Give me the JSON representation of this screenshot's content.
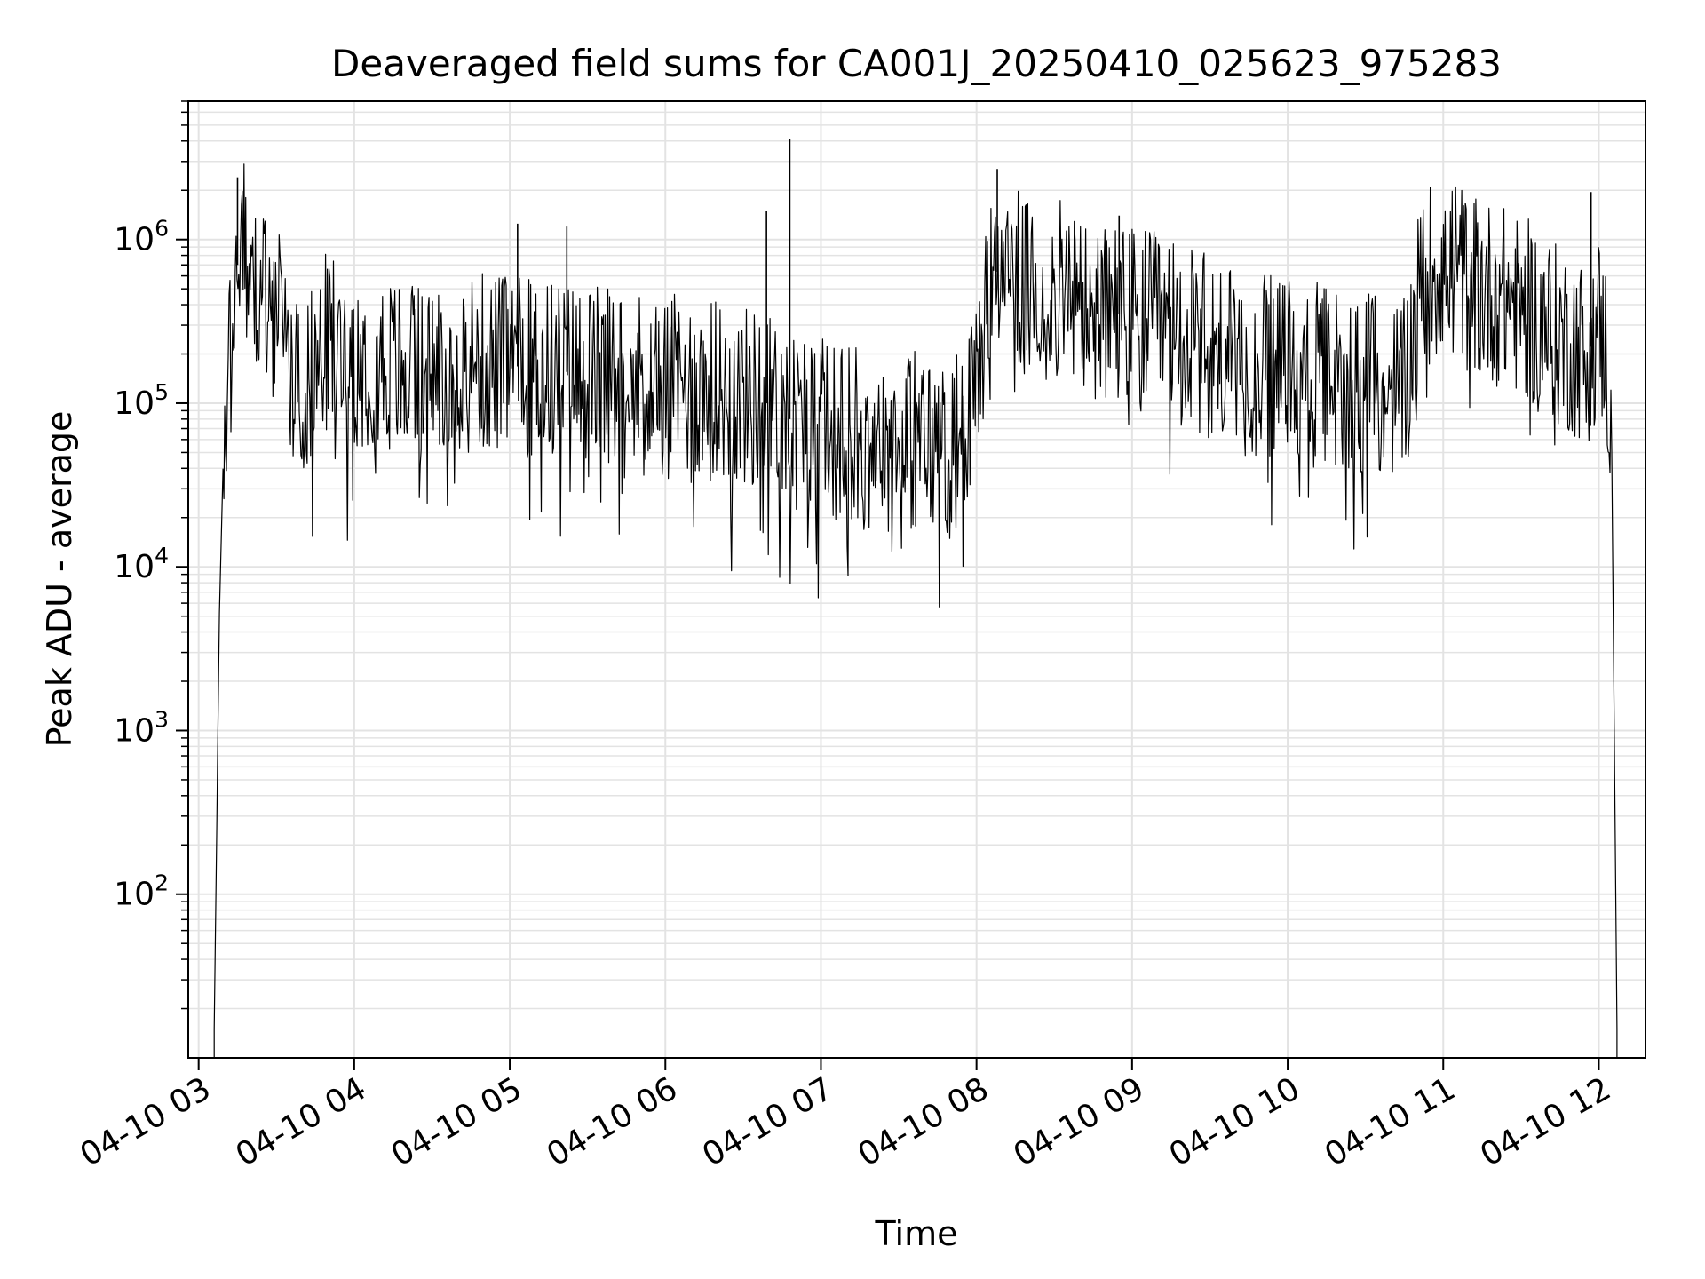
{
  "chart_data": {
    "type": "line",
    "title": "Deaveraged field sums for CA001J_20250410_025623_975283",
    "xlabel": "Time",
    "ylabel": "Peak ADU - average",
    "yscale": "log",
    "ylim": [
      10,
      7000000
    ],
    "xlim": [
      "2025-04-10 02:56",
      "2025-04-10 12:18"
    ],
    "grid": true,
    "grid_color": "#e3e3e3",
    "line_color": "#000000",
    "x_ticks": [
      {
        "value": "2025-04-10 03:00",
        "label": "04-10 03"
      },
      {
        "value": "2025-04-10 04:00",
        "label": "04-10 04"
      },
      {
        "value": "2025-04-10 05:00",
        "label": "04-10 05"
      },
      {
        "value": "2025-04-10 06:00",
        "label": "04-10 06"
      },
      {
        "value": "2025-04-10 07:00",
        "label": "04-10 07"
      },
      {
        "value": "2025-04-10 08:00",
        "label": "04-10 08"
      },
      {
        "value": "2025-04-10 09:00",
        "label": "04-10 09"
      },
      {
        "value": "2025-04-10 10:00",
        "label": "04-10 10"
      },
      {
        "value": "2025-04-10 11:00",
        "label": "04-10 11"
      },
      {
        "value": "2025-04-10 12:00",
        "label": "04-10 12"
      }
    ],
    "y_ticks": [
      {
        "value": 100,
        "base": "10",
        "exp": "2"
      },
      {
        "value": 1000,
        "base": "10",
        "exp": "3"
      },
      {
        "value": 10000,
        "base": "10",
        "exp": "4"
      },
      {
        "value": 100000,
        "base": "10",
        "exp": "5"
      },
      {
        "value": 1000000,
        "base": "10",
        "exp": "6"
      }
    ],
    "series": [
      {
        "x": [
          "2025-04-10 03:06",
          "2025-04-10 03:08",
          "2025-04-10 03:10",
          "2025-04-10 03:12",
          "2025-04-10 03:14",
          "2025-04-10 03:15",
          "2025-04-10 03:17",
          "2025-04-10 03:20",
          "2025-04-10 03:25",
          "2025-04-10 03:30",
          "2025-04-10 03:35",
          "2025-04-10 03:40",
          "2025-04-10 03:45",
          "2025-04-10 03:50",
          "2025-04-10 03:55",
          "2025-04-10 04:00",
          "2025-04-10 04:10",
          "2025-04-10 04:20",
          "2025-04-10 04:27",
          "2025-04-10 04:35",
          "2025-04-10 04:45",
          "2025-04-10 05:00",
          "2025-04-10 05:15",
          "2025-04-10 05:30",
          "2025-04-10 05:45",
          "2025-04-10 06:00",
          "2025-04-10 06:15",
          "2025-04-10 06:30",
          "2025-04-10 06:39",
          "2025-04-10 06:48",
          "2025-04-10 07:00",
          "2025-04-10 07:15",
          "2025-04-10 07:30",
          "2025-04-10 07:45",
          "2025-04-10 07:55",
          "2025-04-10 08:00",
          "2025-04-10 08:05",
          "2025-04-10 08:10",
          "2025-04-10 08:20",
          "2025-04-10 08:30",
          "2025-04-10 08:45",
          "2025-04-10 09:00",
          "2025-04-10 09:15",
          "2025-04-10 09:30",
          "2025-04-10 09:45",
          "2025-04-10 10:00",
          "2025-04-10 10:15",
          "2025-04-10 10:30",
          "2025-04-10 10:45",
          "2025-04-10 10:52",
          "2025-04-10 11:00",
          "2025-04-10 11:15",
          "2025-04-10 11:30",
          "2025-04-10 11:45",
          "2025-04-10 11:56",
          "2025-04-10 12:00",
          "2025-04-10 12:03",
          "2025-04-10 12:05",
          "2025-04-10 12:07"
        ],
        "y": [
          15,
          5000,
          100000,
          300000,
          500000,
          700000,
          900000,
          700000,
          500000,
          350000,
          200000,
          120000,
          150000,
          250000,
          200000,
          200000,
          180000,
          150000,
          150000,
          170000,
          180000,
          170000,
          160000,
          150000,
          140000,
          130000,
          120000,
          110000,
          100000,
          80000,
          70000,
          60000,
          60000,
          55000,
          60000,
          150000,
          450000,
          800000,
          450000,
          500000,
          350000,
          350000,
          280000,
          220000,
          170000,
          160000,
          150000,
          130000,
          120000,
          600000,
          700000,
          500000,
          400000,
          250000,
          200000,
          300000,
          200000,
          50000,
          15
        ],
        "spikes": [
          {
            "x": "2025-04-10 03:15",
            "y": 2400000
          },
          {
            "x": "2025-04-10 05:03",
            "y": 1250000
          },
          {
            "x": "2025-04-10 05:22",
            "y": 1200000
          },
          {
            "x": "2025-04-10 06:39",
            "y": 1500000
          },
          {
            "x": "2025-04-10 06:48",
            "y": 4100000
          },
          {
            "x": "2025-04-10 08:08",
            "y": 2700000
          },
          {
            "x": "2025-04-10 08:55",
            "y": 1400000
          },
          {
            "x": "2025-04-10 11:57",
            "y": 1950000
          }
        ]
      }
    ]
  }
}
